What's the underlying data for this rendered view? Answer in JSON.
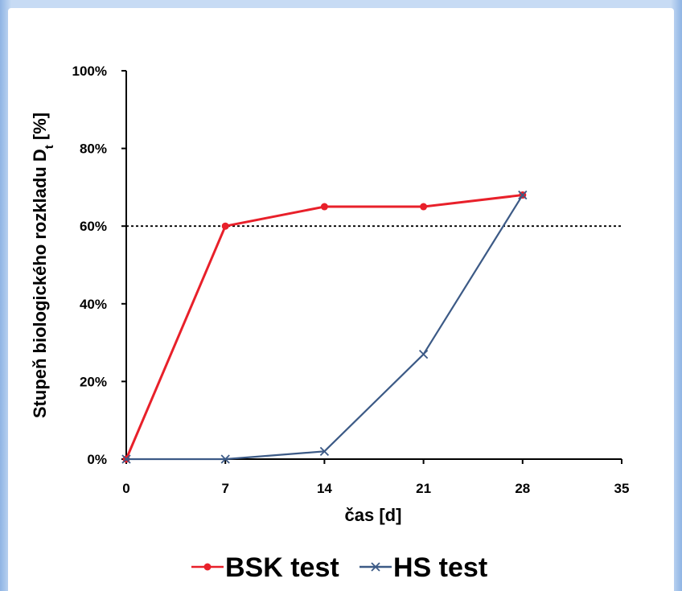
{
  "chart_data": {
    "type": "line",
    "xlabel": "čas [d]",
    "ylabel": "Stupeň biologického rozkladu D",
    "ylabel_subscript": "t",
    "ylabel_suffix": " [%]",
    "xlim": [
      0,
      35
    ],
    "ylim": [
      0,
      100
    ],
    "x_ticks": [
      0,
      7,
      14,
      21,
      28,
      35
    ],
    "y_ticks": [
      0,
      20,
      40,
      60,
      80,
      100
    ],
    "y_tick_labels": [
      "0%",
      "20%",
      "40%",
      "60%",
      "80%",
      "100%"
    ],
    "grid": false,
    "reference_line": {
      "y": 60,
      "style": "dotted",
      "color": "#000000"
    },
    "legend_position": "bottom",
    "series": [
      {
        "name": "BSK test",
        "color": "#e8202a",
        "marker": "circle",
        "x": [
          0,
          7,
          14,
          21,
          28
        ],
        "y": [
          0,
          60,
          65,
          65,
          68
        ]
      },
      {
        "name": "HS test",
        "color": "#3c5a86",
        "marker": "x",
        "x": [
          0,
          7,
          14,
          21,
          28
        ],
        "y": [
          0,
          0,
          2,
          27,
          68
        ]
      }
    ]
  }
}
